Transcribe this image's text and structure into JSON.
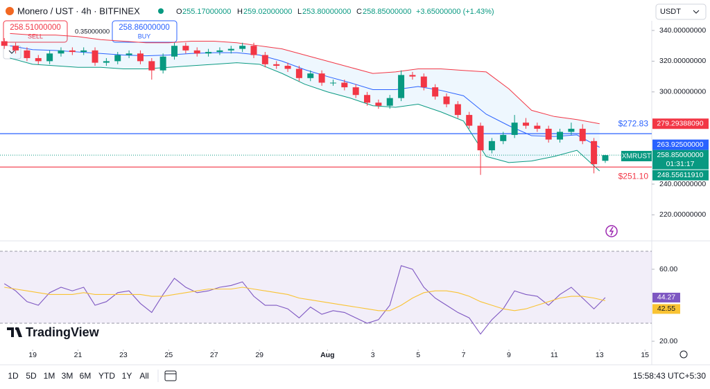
{
  "ui": {
    "header": {
      "symbol": "Monero / UST · 4h · BITFINEX",
      "o": "O",
      "o_value": "255.17000000",
      "h": "H",
      "h_value": "259.02000000",
      "l": "L",
      "l_value": "253.80000000",
      "c": "C",
      "c_value": "258.85000000",
      "change": "+3.65000000 (+1.43%)"
    },
    "trade": {
      "sell_price": "258.51000000",
      "sell": "SELL",
      "spread": "0.35000000",
      "buy_price": "258.86000000",
      "buy": "BUY"
    },
    "currency": "USDT",
    "ticker": "XMRUST",
    "countdown": "01:31:17",
    "logo": "TradingView",
    "ranges": [
      "1D",
      "5D",
      "1M",
      "3M",
      "6M",
      "YTD",
      "1Y",
      "All"
    ],
    "clock": "15:58:43 UTC+5:30"
  },
  "chart_data": [
    {
      "type": "candlestick",
      "title": "Monero / UST · 4h · BITFINEX",
      "up_color": "#089981",
      "down_color": "#f23645",
      "x": [
        17.75,
        18.25,
        18.75,
        19.25,
        19.75,
        20.25,
        20.75,
        21.25,
        21.75,
        22.25,
        22.75,
        23.25,
        23.75,
        24.25,
        24.75,
        25.25,
        25.75,
        26.25,
        26.75,
        27.25,
        27.75,
        28.25,
        28.75,
        29.25,
        29.75,
        30.25,
        30.75,
        31.25,
        31.75,
        32.25,
        32.75,
        33.25,
        33.75,
        34.25,
        34.75,
        35.25,
        35.75,
        36.25,
        36.75,
        37.25,
        37.75,
        38.25,
        38.75,
        39.25,
        39.75,
        40.25,
        40.75,
        41.25,
        41.75,
        42.25,
        42.75,
        43.25,
        43.75,
        44.25
      ],
      "open": [
        333,
        330,
        327,
        322,
        320,
        325,
        327,
        326,
        327,
        319,
        320,
        324,
        325,
        320,
        314,
        323,
        330,
        327,
        325,
        326,
        327,
        328,
        330,
        324,
        318,
        317,
        315,
        309,
        312,
        306,
        306,
        303,
        298,
        293,
        291,
        296,
        311,
        310,
        303,
        297,
        292,
        285,
        278,
        262,
        268,
        272,
        280,
        278,
        276,
        269,
        274,
        276,
        268,
        255.17
      ],
      "high": [
        335,
        332,
        329,
        324,
        327,
        329,
        329,
        329,
        329,
        322,
        326,
        327,
        327,
        322,
        325,
        332,
        332,
        329,
        328,
        329,
        330,
        332,
        332,
        326,
        320,
        319,
        317,
        314,
        314,
        308,
        308,
        305,
        300,
        295,
        298,
        314,
        313,
        312,
        305,
        299,
        294,
        287,
        280,
        270,
        274,
        285,
        283,
        280,
        278,
        276,
        280,
        279,
        270,
        259.02
      ],
      "low": [
        328,
        325,
        320,
        318,
        318,
        323,
        324,
        324,
        317,
        317,
        318,
        322,
        318,
        308,
        312,
        321,
        325,
        323,
        323,
        324,
        325,
        326,
        322,
        316,
        315,
        313,
        307,
        307,
        304,
        304,
        301,
        296,
        291,
        289,
        289,
        294,
        308,
        301,
        295,
        290,
        283,
        276,
        246,
        260,
        266,
        270,
        276,
        274,
        267,
        267,
        272,
        266,
        247,
        253.8
      ],
      "close": [
        330,
        327,
        322,
        320,
        325,
        327,
        326,
        327,
        319,
        320,
        324,
        325,
        320,
        314,
        323,
        330,
        327,
        325,
        326,
        327,
        328,
        330,
        324,
        318,
        317,
        315,
        309,
        312,
        306,
        306,
        303,
        298,
        293,
        291,
        296,
        311,
        310,
        303,
        297,
        292,
        285,
        278,
        262,
        268,
        272,
        280,
        278,
        276,
        269,
        274,
        276,
        268,
        253,
        258.85
      ],
      "value_labels": [
        null,
        null,
        null,
        null,
        null,
        null,
        null,
        null,
        null,
        null,
        null,
        null,
        null,
        null,
        null,
        null,
        null,
        null,
        null,
        null,
        null,
        null,
        null,
        null,
        null,
        null,
        null,
        null,
        null,
        null,
        null,
        null,
        null,
        null,
        null,
        null,
        null,
        null,
        null,
        null,
        null,
        null,
        null,
        null,
        null,
        null,
        null,
        null,
        null,
        null,
        null,
        null,
        null,
        "258.85000000"
      ],
      "series": [
        {
          "color": "#f23645",
          "x": [
            18,
            19,
            20,
            21,
            22,
            23,
            24,
            25,
            26,
            27,
            28,
            29,
            30,
            31,
            32,
            33,
            34,
            35,
            36,
            37,
            38,
            39,
            40,
            41,
            42,
            43,
            44
          ],
          "values": [
            338,
            337,
            337,
            336,
            334,
            333,
            332,
            332,
            333,
            333,
            332,
            330,
            328,
            324,
            320,
            316,
            312,
            313,
            315,
            315,
            314,
            313,
            302,
            288,
            284,
            282,
            279.2938809
          ],
          "value_labels": [
            null,
            null,
            null,
            null,
            null,
            null,
            null,
            null,
            null,
            null,
            null,
            null,
            null,
            null,
            null,
            null,
            null,
            null,
            null,
            null,
            null,
            null,
            null,
            null,
            null,
            null,
            "279.29388090"
          ]
        },
        {
          "color": "#2962ff",
          "x": [
            18,
            19,
            20,
            21,
            22,
            23,
            24,
            25,
            26,
            27,
            28,
            29,
            30,
            31,
            32,
            33,
            34,
            35,
            36,
            37,
            38,
            39,
            40,
            41,
            42,
            43,
            44
          ],
          "values": [
            330,
            327.5,
            327,
            326,
            325,
            324,
            323.5,
            324,
            325,
            325.5,
            325.5,
            324,
            320,
            314.5,
            310,
            306,
            301.5,
            301.5,
            303.5,
            301,
            297.5,
            285.5,
            278,
            271.5,
            271,
            272,
            263.925
          ],
          "value_labels": [
            null,
            null,
            null,
            null,
            null,
            null,
            null,
            null,
            null,
            null,
            null,
            null,
            null,
            null,
            null,
            null,
            null,
            null,
            null,
            null,
            null,
            null,
            null,
            null,
            null,
            null,
            "263.92500000"
          ]
        },
        {
          "color": "#089981",
          "x": [
            18,
            19,
            20,
            21,
            22,
            23,
            24,
            25,
            26,
            27,
            28,
            29,
            30,
            31,
            32,
            33,
            34,
            35,
            36,
            37,
            38,
            39,
            40,
            41,
            42,
            43,
            44
          ],
          "values": [
            322,
            318,
            317,
            316,
            316,
            315,
            315,
            316,
            317,
            318,
            319,
            318,
            312,
            305,
            300,
            296,
            291,
            290,
            292,
            287,
            281,
            258,
            254,
            255,
            258,
            262,
            248.5561191
          ],
          "value_labels": [
            null,
            null,
            null,
            null,
            null,
            null,
            null,
            null,
            null,
            null,
            null,
            null,
            null,
            null,
            null,
            null,
            null,
            null,
            null,
            null,
            null,
            null,
            null,
            null,
            null,
            null,
            "248.55611910"
          ]
        }
      ],
      "hlines": [
        {
          "value": 272.83,
          "label": "$272.83",
          "color": "#2962ff"
        },
        {
          "value": 251.1,
          "label": "$251.10",
          "color": "#f23645"
        }
      ],
      "xlim": [
        17.56,
        46.3
      ],
      "xticks": [
        19,
        21,
        23,
        25,
        27,
        29,
        {
          "value": 32,
          "label": "Aug"
        },
        {
          "value": 34,
          "label": "3"
        },
        {
          "value": 36,
          "label": "5"
        },
        {
          "value": 38,
          "label": "7"
        },
        {
          "value": 40,
          "label": "9"
        },
        {
          "value": 42,
          "label": "11"
        },
        {
          "value": 44,
          "label": "13"
        },
        {
          "value": 46,
          "label": "15"
        }
      ],
      "ylim": [
        204.4,
        346.3
      ],
      "yticks": [
        {
          "value": 340,
          "label": "340.00000000"
        },
        {
          "value": 320,
          "label": "320.00000000"
        },
        {
          "value": 300,
          "label": "300.00000000"
        },
        {
          "value": 240,
          "label": "240.00000000"
        },
        {
          "value": 220,
          "label": "220.00000000"
        }
      ]
    },
    {
      "type": "line",
      "x": [
        17.75,
        18.25,
        18.75,
        19.25,
        19.75,
        20.25,
        20.75,
        21.25,
        21.75,
        22.25,
        22.75,
        23.25,
        23.75,
        24.25,
        24.75,
        25.25,
        25.75,
        26.25,
        26.75,
        27.25,
        27.75,
        28.25,
        28.75,
        29.25,
        29.75,
        30.25,
        30.75,
        31.25,
        31.75,
        32.25,
        32.75,
        33.25,
        33.75,
        34.25,
        34.75,
        35.25,
        35.75,
        36.25,
        36.75,
        37.25,
        37.75,
        38.25,
        38.75,
        39.25,
        39.75,
        40.25,
        40.75,
        41.25,
        41.75,
        42.25,
        42.75,
        43.25,
        43.75,
        44.25
      ],
      "series": [
        {
          "color": "#7e57c2",
          "values": [
            52,
            48,
            42,
            40,
            47,
            50,
            48,
            50,
            40,
            42,
            47,
            48,
            41,
            36,
            46,
            55,
            50,
            47,
            48,
            50,
            51,
            53,
            45,
            40,
            40,
            38,
            33,
            39,
            35,
            37,
            36,
            33,
            30,
            32,
            40,
            62,
            60,
            50,
            44,
            40,
            36,
            33,
            24,
            32,
            38,
            48,
            46,
            45,
            40,
            46,
            50,
            44,
            38,
            44.27
          ]
        },
        {
          "color": "#f9c333",
          "values": [
            50,
            49,
            48,
            47,
            46,
            46,
            46,
            47,
            46,
            46,
            46,
            46,
            46,
            45,
            45,
            46,
            47,
            48,
            49,
            49,
            49,
            50,
            49,
            48,
            47,
            46,
            44,
            43,
            42,
            41,
            40,
            39,
            38,
            37,
            37,
            40,
            44,
            47,
            48,
            48,
            47,
            45,
            42,
            40,
            38,
            37,
            38,
            40,
            42,
            44,
            45,
            45,
            44,
            42.55
          ]
        }
      ],
      "bands": [
        30,
        70
      ],
      "xlim": [
        17.56,
        46.3
      ],
      "ylim": [
        15.4,
        75
      ],
      "yticks": [
        {
          "value": 60,
          "label": "60.00"
        },
        {
          "value": 20,
          "label": "20.00"
        }
      ]
    }
  ]
}
